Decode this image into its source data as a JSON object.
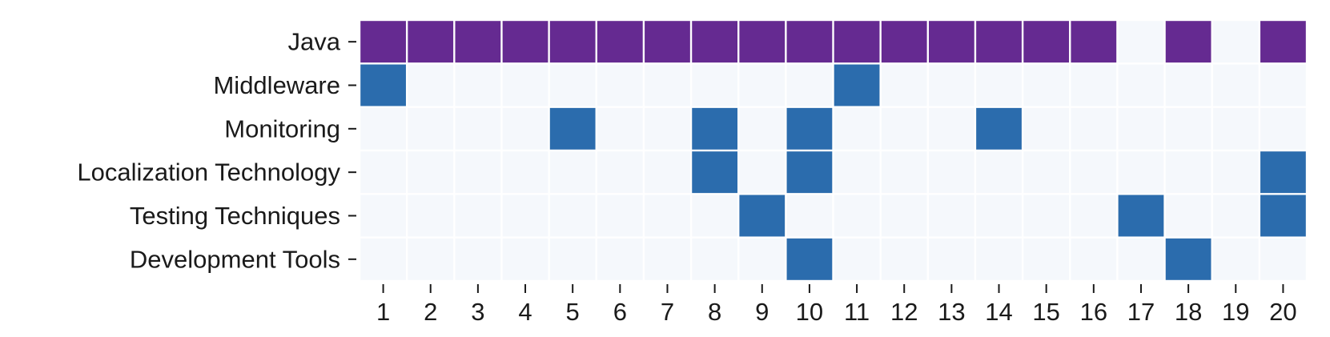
{
  "chart_data": {
    "type": "heatmap",
    "title": "",
    "xlabel": "",
    "ylabel": "",
    "x_categories": [
      "1",
      "2",
      "3",
      "4",
      "5",
      "6",
      "7",
      "8",
      "9",
      "10",
      "11",
      "12",
      "13",
      "14",
      "15",
      "16",
      "17",
      "18",
      "19",
      "20"
    ],
    "y_categories": [
      "Java",
      "Middleware",
      "Monitoring",
      "Localization Technology",
      "Testing Techniques",
      "Development Tools"
    ],
    "matrix": [
      [
        1,
        1,
        1,
        1,
        1,
        1,
        1,
        1,
        1,
        1,
        1,
        1,
        1,
        1,
        1,
        1,
        0,
        1,
        0,
        1
      ],
      [
        1,
        0,
        0,
        0,
        0,
        0,
        0,
        0,
        0,
        0,
        1,
        0,
        0,
        0,
        0,
        0,
        0,
        0,
        0,
        0
      ],
      [
        0,
        0,
        0,
        0,
        1,
        0,
        0,
        1,
        0,
        1,
        0,
        0,
        0,
        1,
        0,
        0,
        0,
        0,
        0,
        0
      ],
      [
        0,
        0,
        0,
        0,
        0,
        0,
        0,
        1,
        0,
        1,
        0,
        0,
        0,
        0,
        0,
        0,
        0,
        0,
        0,
        1
      ],
      [
        0,
        0,
        0,
        0,
        0,
        0,
        0,
        0,
        1,
        0,
        0,
        0,
        0,
        0,
        0,
        0,
        1,
        0,
        0,
        1
      ],
      [
        0,
        0,
        0,
        0,
        0,
        0,
        0,
        0,
        0,
        1,
        0,
        0,
        0,
        0,
        0,
        0,
        0,
        1,
        0,
        0
      ]
    ],
    "row_colors": [
      "#652a91",
      "#2b6cad",
      "#2b6cad",
      "#2b6cad",
      "#2b6cad",
      "#2b6cad"
    ],
    "empty_color": "#f5f8fc",
    "grid_line_color": "#ffffff",
    "grid": true,
    "legend": "none"
  }
}
